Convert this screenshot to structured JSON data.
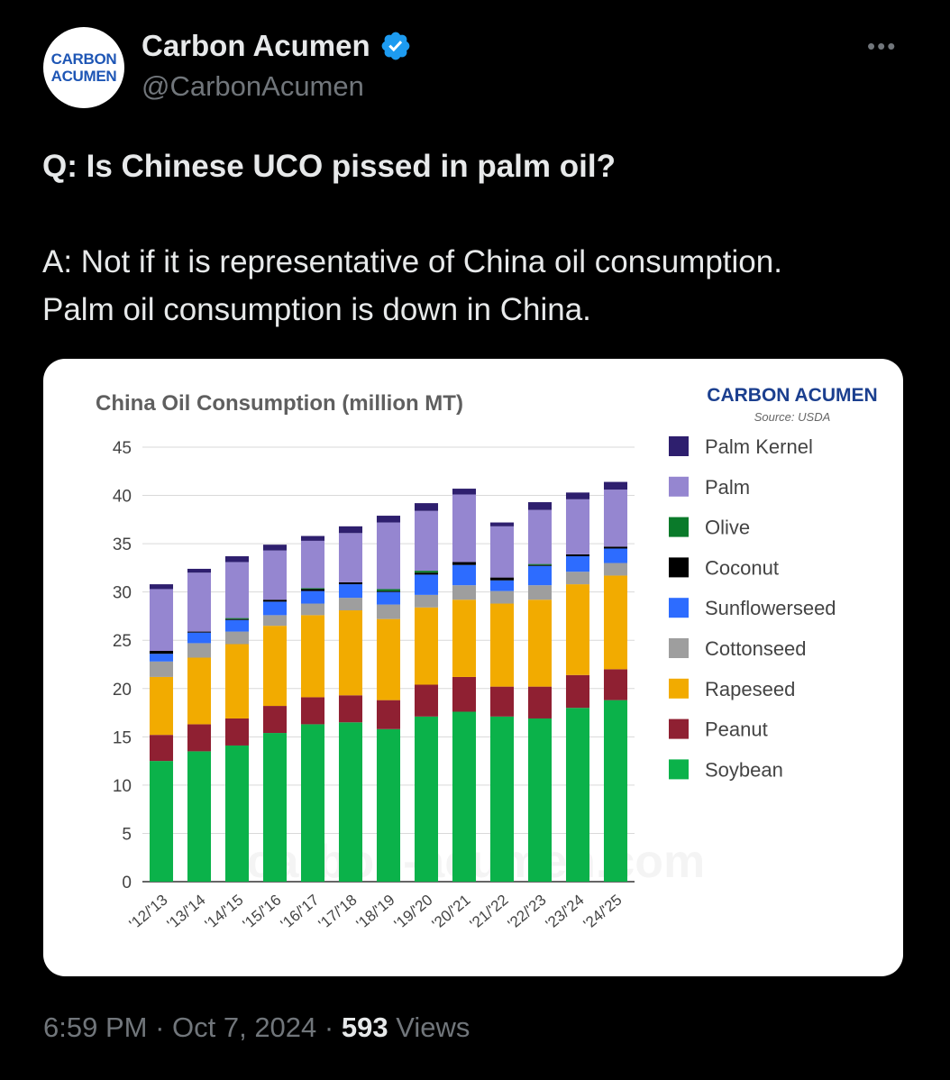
{
  "author": {
    "display_name": "Carbon Acumen",
    "handle": "@CarbonAcumen",
    "avatar_line1": "CARBON",
    "avatar_line2": "ACUMEN",
    "verified_icon": "verified-badge-icon",
    "more_icon": "more-dots-icon"
  },
  "tweet": {
    "question": "Q: Is Chinese UCO pissed in palm oil?",
    "answer_line1": "A: Not if it is representative of China oil consumption.",
    "answer_line2": "Palm oil consumption is down in China."
  },
  "meta": {
    "time": "6:59 PM",
    "date": "Oct 7, 2024",
    "views_count": "593",
    "views_label": "Views"
  },
  "chart_data": {
    "type": "bar",
    "stacked": true,
    "title": "China Oil Consumption (million MT)",
    "brand": "CARBON ACUMEN",
    "source": "Source: USDA",
    "watermark": "carbon-acumen.com",
    "categories": [
      "'12/'13",
      "'13/'14",
      "'14/'15",
      "'15/'16",
      "'16/'17",
      "'17/'18",
      "'18/'19",
      "'19/'20",
      "'20/'21",
      "'21/'22",
      "'22/'23",
      "'23/'24",
      "'24/'25"
    ],
    "ylim": [
      0,
      45
    ],
    "yticks": [
      0,
      5,
      10,
      15,
      20,
      25,
      30,
      35,
      40,
      45
    ],
    "grid": true,
    "legend_position": "right",
    "series": [
      {
        "name": "Soybean",
        "color": "#0bb24a",
        "values": [
          12.5,
          13.5,
          14.1,
          15.4,
          16.3,
          16.5,
          15.8,
          17.1,
          17.6,
          17.1,
          16.9,
          18.0,
          18.8
        ]
      },
      {
        "name": "Peanut",
        "color": "#8f2032",
        "values": [
          2.7,
          2.8,
          2.8,
          2.8,
          2.8,
          2.8,
          3.0,
          3.3,
          3.6,
          3.1,
          3.3,
          3.4,
          3.2
        ]
      },
      {
        "name": "Rapeseed",
        "color": "#f2ab00",
        "values": [
          6.0,
          6.9,
          7.7,
          8.3,
          8.5,
          8.8,
          8.4,
          8.0,
          8.0,
          8.6,
          9.0,
          9.4,
          9.7
        ]
      },
      {
        "name": "Cottonseed",
        "color": "#9e9e9e",
        "values": [
          1.6,
          1.5,
          1.3,
          1.1,
          1.2,
          1.3,
          1.5,
          1.3,
          1.5,
          1.3,
          1.5,
          1.3,
          1.3
        ]
      },
      {
        "name": "Sunflowerseed",
        "color": "#2d6cff",
        "values": [
          0.8,
          1.1,
          1.2,
          1.4,
          1.3,
          1.4,
          1.3,
          2.1,
          2.1,
          1.1,
          2.0,
          1.6,
          1.5
        ]
      },
      {
        "name": "Coconut",
        "color": "#000000",
        "values": [
          0.3,
          0.1,
          0.1,
          0.2,
          0.2,
          0.2,
          0.1,
          0.2,
          0.3,
          0.3,
          0.1,
          0.2,
          0.2
        ]
      },
      {
        "name": "Olive",
        "color": "#0a7a2a",
        "values": [
          0.0,
          0.0,
          0.1,
          0.0,
          0.1,
          0.0,
          0.2,
          0.2,
          0.0,
          0.0,
          0.1,
          0.0,
          0.0
        ]
      },
      {
        "name": "Palm",
        "color": "#9586d0",
        "values": [
          6.4,
          6.1,
          5.8,
          5.1,
          4.9,
          5.1,
          6.9,
          6.2,
          7.0,
          5.3,
          5.6,
          5.7,
          5.9
        ]
      },
      {
        "name": "Palm Kernel",
        "color": "#2e1f6e",
        "values": [
          0.5,
          0.4,
          0.6,
          0.6,
          0.5,
          0.7,
          0.7,
          0.8,
          0.6,
          0.4,
          0.8,
          0.7,
          0.8
        ]
      }
    ],
    "legend_order": [
      "Palm Kernel",
      "Palm",
      "Olive",
      "Coconut",
      "Sunflowerseed",
      "Cottonseed",
      "Rapeseed",
      "Peanut",
      "Soybean"
    ]
  }
}
